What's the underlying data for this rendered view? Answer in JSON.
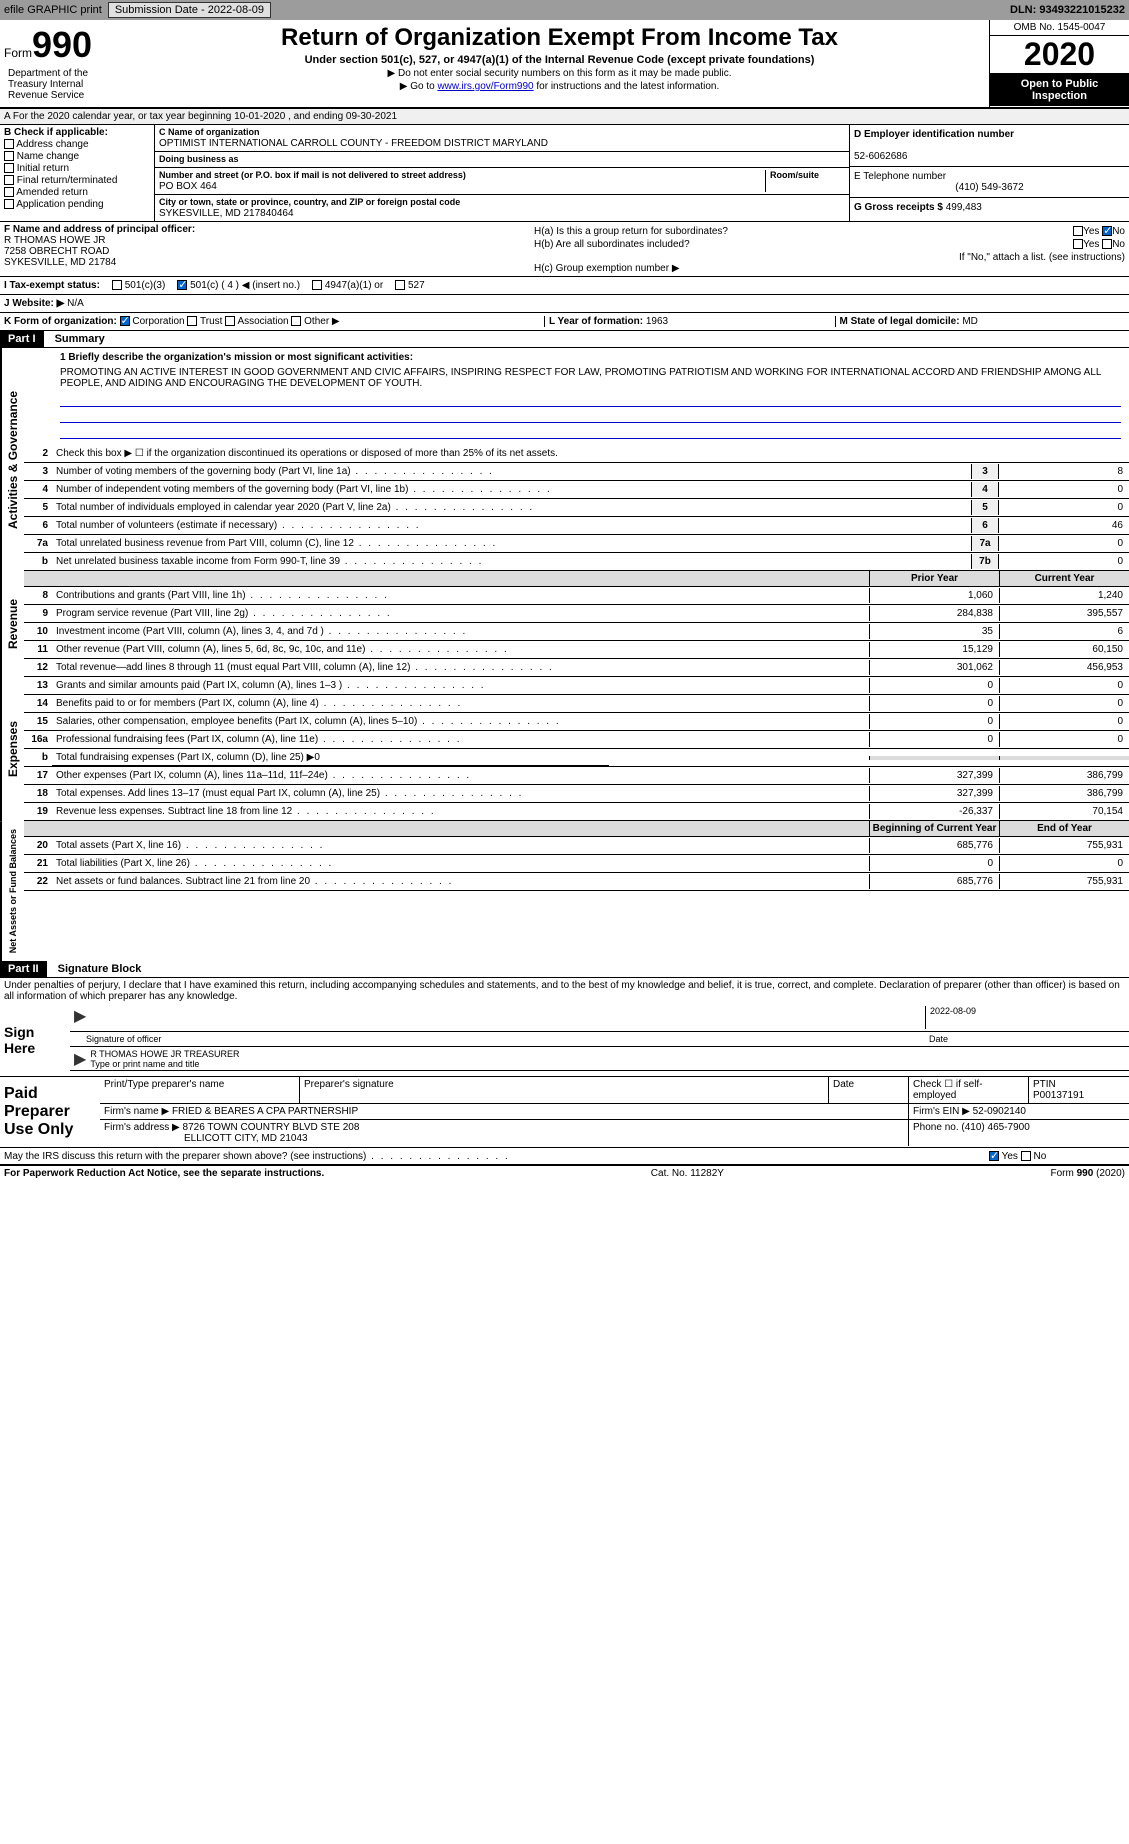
{
  "topbar": {
    "efile": "efile GRAPHIC print",
    "submission": "Submission Date - 2022-08-09",
    "dln": "DLN: 93493221015232"
  },
  "header": {
    "form_word": "Form",
    "form_num": "990",
    "title": "Return of Organization Exempt From Income Tax",
    "subtitle": "Under section 501(c), 527, or 4947(a)(1) of the Internal Revenue Code (except private foundations)",
    "note1": "▶ Do not enter social security numbers on this form as it may be made public.",
    "note2": "▶ Go to www.irs.gov/Form990 for instructions and the latest information.",
    "omb": "OMB No. 1545-0047",
    "year": "2020",
    "open": "Open to Public Inspection",
    "dept": "Department of the Treasury Internal Revenue Service"
  },
  "row_a": "A For the 2020 calendar year, or tax year beginning 10-01-2020   , and ending 09-30-2021",
  "section_b": {
    "label": "B Check if applicable:",
    "items": [
      "Address change",
      "Name change",
      "Initial return",
      "Final return/terminated",
      "Amended return",
      "Application pending"
    ]
  },
  "section_c": {
    "name_label": "C Name of organization",
    "name": "OPTIMIST INTERNATIONAL CARROLL COUNTY - FREEDOM DISTRICT MARYLAND",
    "dba_label": "Doing business as",
    "dba": "",
    "addr_label": "Number and street (or P.O. box if mail is not delivered to street address)",
    "addr": "PO BOX 464",
    "room_label": "Room/suite",
    "city_label": "City or town, state or province, country, and ZIP or foreign postal code",
    "city": "SYKESVILLE, MD  217840464"
  },
  "section_d": {
    "ein_label": "D Employer identification number",
    "ein": "52-6062686",
    "phone_label": "E Telephone number",
    "phone": "(410) 549-3672",
    "gross_label": "G Gross receipts $",
    "gross": "499,483"
  },
  "section_f": {
    "label": "F  Name and address of principal officer:",
    "name": "R THOMAS HOWE JR",
    "addr1": "7258 OBRECHT ROAD",
    "addr2": "SYKESVILLE, MD  21784"
  },
  "section_h": {
    "ha": "H(a)  Is this a group return for subordinates?",
    "hb": "H(b)  Are all subordinates included?",
    "hb_note": "If \"No,\" attach a list. (see instructions)",
    "hc": "H(c)  Group exemption number ▶",
    "yes": "Yes",
    "no": "No"
  },
  "tax_row": {
    "label": "I  Tax-exempt status:",
    "opts": [
      "501(c)(3)",
      "501(c) ( 4 ) ◀ (insert no.)",
      "4947(a)(1) or",
      "527"
    ]
  },
  "row_j": {
    "label": "J  Website: ▶",
    "val": "N/A"
  },
  "row_k": {
    "label": "K Form of organization:",
    "opts": [
      "Corporation",
      "Trust",
      "Association",
      "Other ▶"
    ],
    "l_label": "L Year of formation:",
    "l_val": "1963",
    "m_label": "M State of legal domicile:",
    "m_val": "MD"
  },
  "part1": {
    "hdr": "Part I",
    "title": "Summary",
    "mission_label": "1 Briefly describe the organization's mission or most significant activities:",
    "mission": "PROMOTING AN ACTIVE INTEREST IN GOOD GOVERNMENT AND CIVIC AFFAIRS, INSPIRING RESPECT FOR LAW, PROMOTING PATRIOTISM AND WORKING FOR INTERNATIONAL ACCORD AND FRIENDSHIP AMONG ALL PEOPLE, AND AIDING AND ENCOURAGING THE DEVELOPMENT OF YOUTH."
  },
  "sides": {
    "gov": "Activities & Governance",
    "rev": "Revenue",
    "exp": "Expenses",
    "net": "Net Assets or Fund Balances"
  },
  "gov_lines": [
    {
      "num": "2",
      "desc": "Check this box ▶ ☐ if the organization discontinued its operations or disposed of more than 25% of its net assets.",
      "box": "",
      "val": ""
    },
    {
      "num": "3",
      "desc": "Number of voting members of the governing body (Part VI, line 1a)",
      "box": "3",
      "val": "8"
    },
    {
      "num": "4",
      "desc": "Number of independent voting members of the governing body (Part VI, line 1b)",
      "box": "4",
      "val": "0"
    },
    {
      "num": "5",
      "desc": "Total number of individuals employed in calendar year 2020 (Part V, line 2a)",
      "box": "5",
      "val": "0"
    },
    {
      "num": "6",
      "desc": "Total number of volunteers (estimate if necessary)",
      "box": "6",
      "val": "46"
    },
    {
      "num": "7a",
      "desc": "Total unrelated business revenue from Part VIII, column (C), line 12",
      "box": "7a",
      "val": "0"
    },
    {
      "num": "b",
      "desc": "Net unrelated business taxable income from Form 990-T, line 39",
      "box": "7b",
      "val": "0"
    }
  ],
  "col_hdrs": {
    "prior": "Prior Year",
    "current": "Current Year",
    "beg": "Beginning of Current Year",
    "end": "End of Year"
  },
  "rev_lines": [
    {
      "num": "8",
      "desc": "Contributions and grants (Part VIII, line 1h)",
      "prior": "1,060",
      "curr": "1,240"
    },
    {
      "num": "9",
      "desc": "Program service revenue (Part VIII, line 2g)",
      "prior": "284,838",
      "curr": "395,557"
    },
    {
      "num": "10",
      "desc": "Investment income (Part VIII, column (A), lines 3, 4, and 7d )",
      "prior": "35",
      "curr": "6"
    },
    {
      "num": "11",
      "desc": "Other revenue (Part VIII, column (A), lines 5, 6d, 8c, 9c, 10c, and 11e)",
      "prior": "15,129",
      "curr": "60,150"
    },
    {
      "num": "12",
      "desc": "Total revenue—add lines 8 through 11 (must equal Part VIII, column (A), line 12)",
      "prior": "301,062",
      "curr": "456,953"
    }
  ],
  "exp_lines": [
    {
      "num": "13",
      "desc": "Grants and similar amounts paid (Part IX, column (A), lines 1–3 )",
      "prior": "0",
      "curr": "0"
    },
    {
      "num": "14",
      "desc": "Benefits paid to or for members (Part IX, column (A), line 4)",
      "prior": "0",
      "curr": "0"
    },
    {
      "num": "15",
      "desc": "Salaries, other compensation, employee benefits (Part IX, column (A), lines 5–10)",
      "prior": "0",
      "curr": "0"
    },
    {
      "num": "16a",
      "desc": "Professional fundraising fees (Part IX, column (A), line 11e)",
      "prior": "0",
      "curr": "0"
    },
    {
      "num": "b",
      "desc": "Total fundraising expenses (Part IX, column (D), line 25) ▶0",
      "prior": "",
      "curr": ""
    },
    {
      "num": "17",
      "desc": "Other expenses (Part IX, column (A), lines 11a–11d, 11f–24e)",
      "prior": "327,399",
      "curr": "386,799"
    },
    {
      "num": "18",
      "desc": "Total expenses. Add lines 13–17 (must equal Part IX, column (A), line 25)",
      "prior": "327,399",
      "curr": "386,799"
    },
    {
      "num": "19",
      "desc": "Revenue less expenses. Subtract line 18 from line 12",
      "prior": "-26,337",
      "curr": "70,154"
    }
  ],
  "net_lines": [
    {
      "num": "20",
      "desc": "Total assets (Part X, line 16)",
      "prior": "685,776",
      "curr": "755,931"
    },
    {
      "num": "21",
      "desc": "Total liabilities (Part X, line 26)",
      "prior": "0",
      "curr": "0"
    },
    {
      "num": "22",
      "desc": "Net assets or fund balances. Subtract line 21 from line 20",
      "prior": "685,776",
      "curr": "755,931"
    }
  ],
  "part2": {
    "hdr": "Part II",
    "title": "Signature Block",
    "declare": "Under penalties of perjury, I declare that I have examined this return, including accompanying schedules and statements, and to the best of my knowledge and belief, it is true, correct, and complete. Declaration of preparer (other than officer) is based on all information of which preparer has any knowledge."
  },
  "sign": {
    "label": "Sign Here",
    "sig_label": "Signature of officer",
    "date": "2022-08-09",
    "date_label": "Date",
    "name": "R THOMAS HOWE JR TREASURER",
    "name_label": "Type or print name and title"
  },
  "prep": {
    "label": "Paid Preparer Use Only",
    "name_label": "Print/Type preparer's name",
    "sig_label": "Preparer's signature",
    "date_label": "Date",
    "check_label": "Check ☐ if self-employed",
    "ptin_label": "PTIN",
    "ptin": "P00137191",
    "firm_label": "Firm's name    ▶",
    "firm": "FRIED & BEARES A CPA PARTNERSHIP",
    "ein_label": "Firm's EIN ▶",
    "ein": "52-0902140",
    "addr_label": "Firm's address ▶",
    "addr1": "8726 TOWN COUNTRY BLVD STE 208",
    "addr2": "ELLICOTT CITY, MD  21043",
    "phone_label": "Phone no.",
    "phone": "(410) 465-7900"
  },
  "discuss": "May the IRS discuss this return with the preparer shown above? (see instructions)",
  "footer": {
    "left": "For Paperwork Reduction Act Notice, see the separate instructions.",
    "mid": "Cat. No. 11282Y",
    "right": "Form 990 (2020)"
  }
}
